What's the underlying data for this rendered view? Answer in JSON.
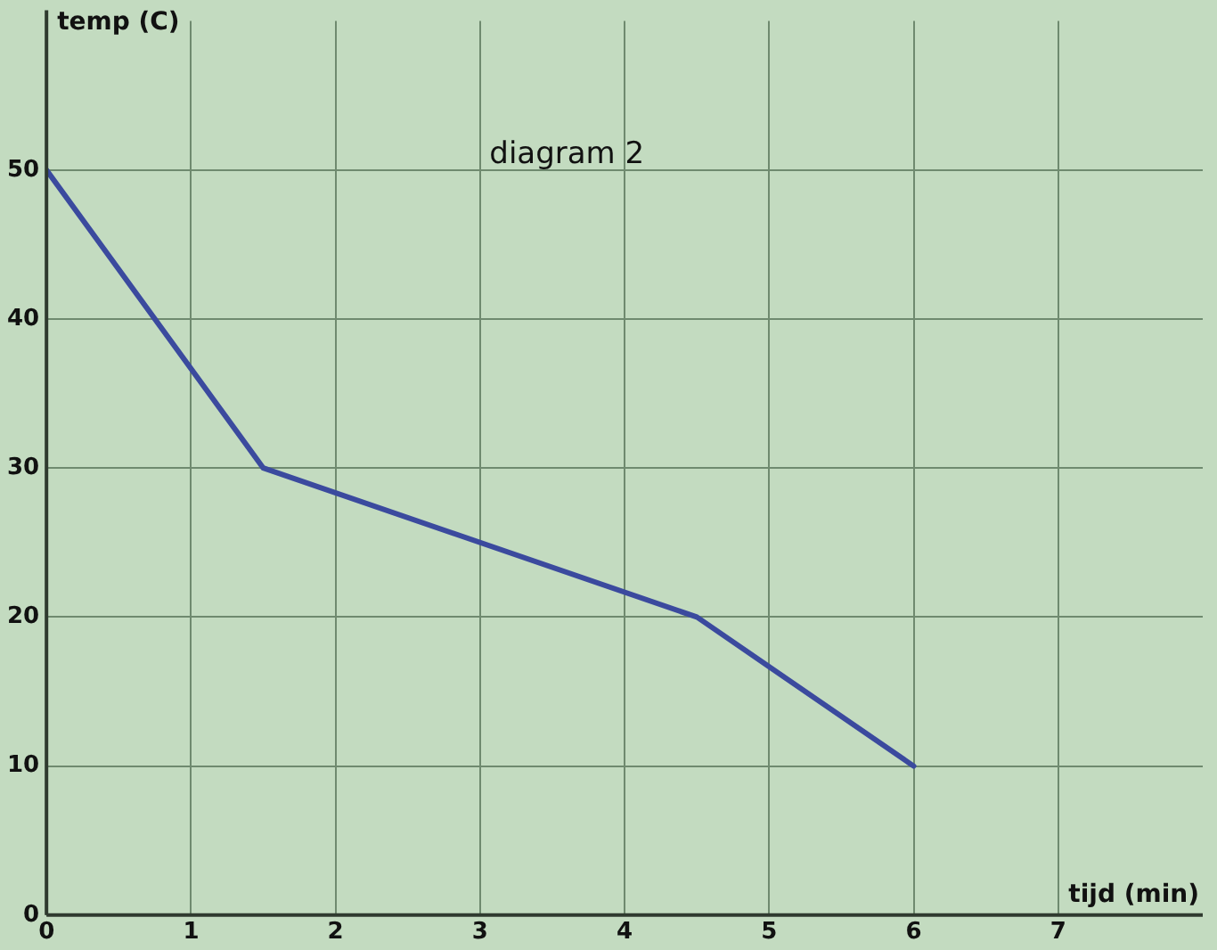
{
  "chart_data": {
    "type": "line",
    "annotations": [
      "diagram 2"
    ],
    "xlabel": "tijd (min)",
    "ylabel": "temp (C)",
    "x": [
      0,
      1.5,
      4.5,
      6
    ],
    "series": [
      {
        "color": "#3b4a9e",
        "values": [
          50,
          30,
          20,
          10
        ]
      }
    ],
    "xlim": [
      0,
      8
    ],
    "xticks": [
      0,
      1,
      2,
      3,
      4,
      5,
      6,
      7
    ],
    "ylim": [
      0,
      60
    ],
    "yticks": [
      0,
      10,
      20,
      30,
      40,
      50
    ],
    "grid": true,
    "legend": false,
    "marker": "none",
    "line_style": "solid"
  }
}
